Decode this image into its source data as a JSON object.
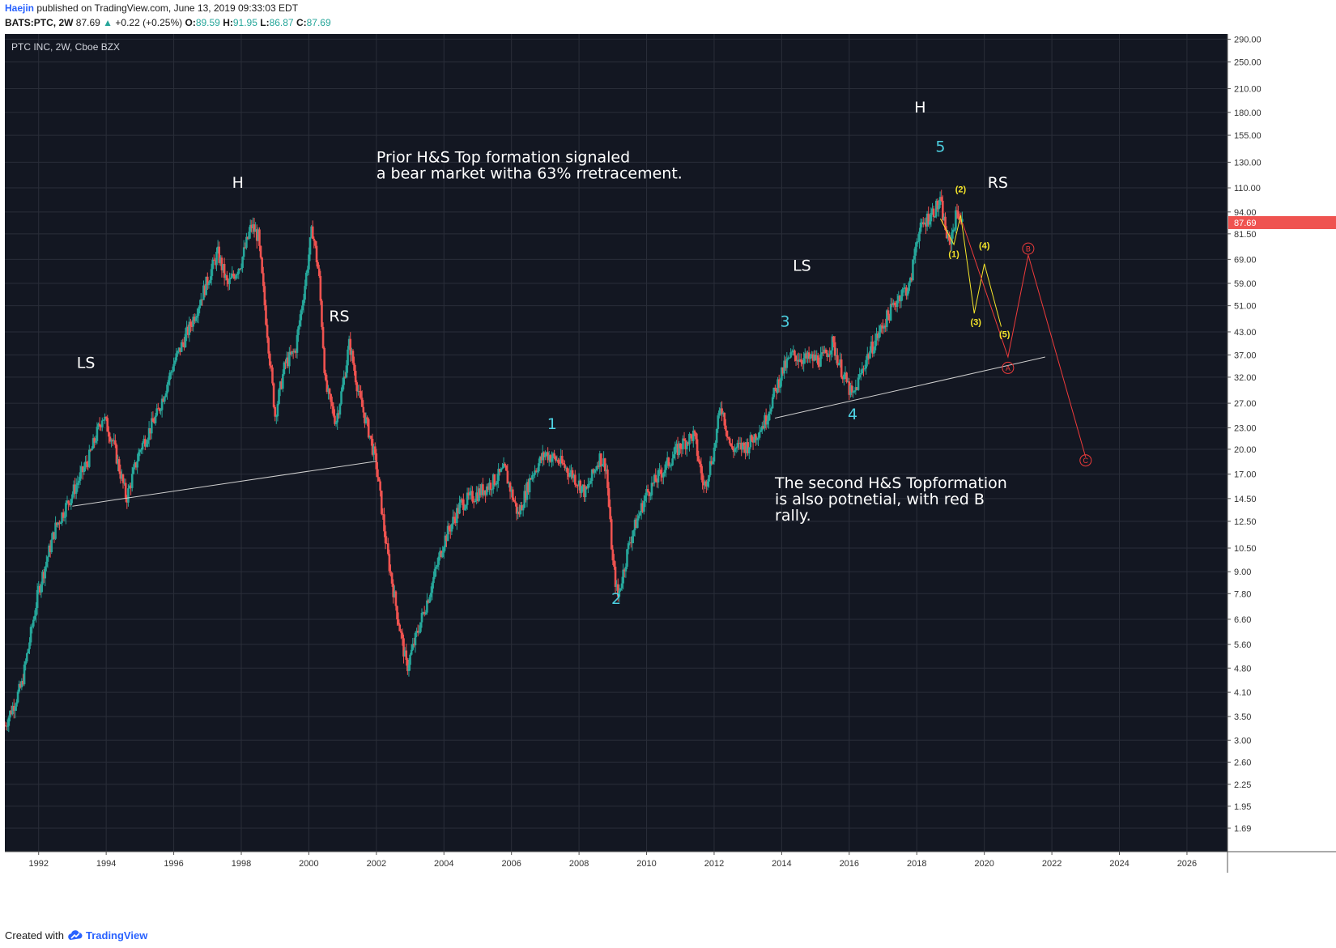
{
  "header": {
    "author": "Haejin",
    "published_text": "published on TradingView.com, June 13, 2019 09:33:03 EDT",
    "symbol": "BATS:PTC, 2W",
    "last": "87.69",
    "change": "+0.22 (+0.25%)",
    "open_label": "O:",
    "open": "89.59",
    "high_label": "H:",
    "high": "91.95",
    "low_label": "L:",
    "low": "86.87",
    "close_label": "C:",
    "close": "87.69"
  },
  "footer": {
    "created_with": "Created with",
    "brand": "TradingView"
  },
  "colors": {
    "background": "#131722",
    "grid": "#2a2e39",
    "up": "#26a69a",
    "down": "#ef5350",
    "cyan": "#4dd0e1",
    "yellow": "#f5e52a",
    "red": "#ef3b3b",
    "white": "#ffffff",
    "price_badge": "#ef5350"
  },
  "chart_data": {
    "type": "candlestick",
    "title": "PTC INC, 2W, Cboe BZX",
    "scale": "log",
    "xlim": [
      1991.0,
      2027.2
    ],
    "ylim": [
      1.45,
      300
    ],
    "x_ticks": [
      "1992",
      "1994",
      "1996",
      "1998",
      "2000",
      "2002",
      "2004",
      "2006",
      "2008",
      "2010",
      "2012",
      "2014",
      "2016",
      "2018",
      "2020",
      "2022",
      "2024",
      "2026"
    ],
    "y_ticks": [
      "290.00",
      "250.00",
      "210.00",
      "180.00",
      "155.00",
      "130.00",
      "110.00",
      "94.00",
      "81.50",
      "69.00",
      "59.00",
      "51.00",
      "43.00",
      "37.00",
      "32.00",
      "27.00",
      "23.00",
      "20.00",
      "17.00",
      "14.50",
      "12.50",
      "10.50",
      "9.00",
      "7.80",
      "6.60",
      "5.60",
      "4.80",
      "4.10",
      "3.50",
      "3.00",
      "2.60",
      "2.25",
      "1.95",
      "1.69"
    ],
    "last_price": "87.69",
    "price_path": [
      [
        1991.0,
        3.3
      ],
      [
        1991.5,
        4.3
      ],
      [
        1992.0,
        8.0
      ],
      [
        1992.5,
        12.0
      ],
      [
        1993.0,
        15.0
      ],
      [
        1993.5,
        19.0
      ],
      [
        1993.9,
        25.0
      ],
      [
        1994.2,
        21.0
      ],
      [
        1994.6,
        14.5
      ],
      [
        1995.0,
        20.0
      ],
      [
        1995.5,
        25.0
      ],
      [
        1996.0,
        35.0
      ],
      [
        1996.5,
        45.0
      ],
      [
        1997.0,
        60.0
      ],
      [
        1997.3,
        72.0
      ],
      [
        1997.6,
        58.0
      ],
      [
        1998.0,
        68.0
      ],
      [
        1998.3,
        86.0
      ],
      [
        1998.5,
        80.0
      ],
      [
        1998.8,
        40.0
      ],
      [
        1999.0,
        25.0
      ],
      [
        1999.3,
        35.0
      ],
      [
        1999.6,
        38.0
      ],
      [
        1999.9,
        60.0
      ],
      [
        2000.1,
        85.0
      ],
      [
        2000.3,
        62.0
      ],
      [
        2000.5,
        30.0
      ],
      [
        2000.8,
        24.0
      ],
      [
        2001.0,
        30.0
      ],
      [
        2001.2,
        40.0
      ],
      [
        2001.5,
        28.0
      ],
      [
        2001.8,
        22.0
      ],
      [
        2002.0,
        18.0
      ],
      [
        2002.3,
        10.5
      ],
      [
        2002.6,
        7.0
      ],
      [
        2002.9,
        4.8
      ],
      [
        2003.2,
        6.0
      ],
      [
        2003.6,
        8.0
      ],
      [
        2004.0,
        11.0
      ],
      [
        2004.5,
        14.0
      ],
      [
        2005.0,
        15.0
      ],
      [
        2005.4,
        16.0
      ],
      [
        2005.8,
        17.5
      ],
      [
        2006.2,
        13.0
      ],
      [
        2006.6,
        17.0
      ],
      [
        2007.0,
        19.5
      ],
      [
        2007.4,
        18.5
      ],
      [
        2007.8,
        17.0
      ],
      [
        2008.2,
        15.0
      ],
      [
        2008.6,
        19.0
      ],
      [
        2008.8,
        18.0
      ],
      [
        2009.0,
        9.5
      ],
      [
        2009.15,
        7.6
      ],
      [
        2009.5,
        11.0
      ],
      [
        2010.0,
        15.0
      ],
      [
        2010.5,
        17.5
      ],
      [
        2011.0,
        20.5
      ],
      [
        2011.4,
        22.0
      ],
      [
        2011.7,
        15.5
      ],
      [
        2012.0,
        20.0
      ],
      [
        2012.2,
        27.0
      ],
      [
        2012.5,
        20.0
      ],
      [
        2013.0,
        20.5
      ],
      [
        2013.5,
        24.0
      ],
      [
        2014.0,
        33.0
      ],
      [
        2014.3,
        37.0
      ],
      [
        2014.7,
        36.0
      ],
      [
        2015.2,
        36.0
      ],
      [
        2015.5,
        40.0
      ],
      [
        2015.8,
        33.0
      ],
      [
        2016.1,
        28.0
      ],
      [
        2016.5,
        36.0
      ],
      [
        2017.0,
        45.0
      ],
      [
        2017.5,
        55.0
      ],
      [
        2017.8,
        58.0
      ],
      [
        2018.0,
        80.0
      ],
      [
        2018.3,
        90.0
      ],
      [
        2018.7,
        100.0
      ],
      [
        2018.95,
        75.0
      ],
      [
        2019.2,
        95.0
      ],
      [
        2019.35,
        87.69
      ]
    ],
    "text_annotations": [
      {
        "text": "LS",
        "x": 1993.4,
        "y": 34.0,
        "color": "white"
      },
      {
        "text": "H",
        "x": 1997.9,
        "y": 110.0,
        "color": "white"
      },
      {
        "text": "RS",
        "x": 2000.9,
        "y": 46.0,
        "color": "white"
      },
      {
        "text": "LS",
        "x": 2014.6,
        "y": 64.0,
        "color": "white"
      },
      {
        "text": "H",
        "x": 2018.1,
        "y": 180.0,
        "color": "white"
      },
      {
        "text": "RS",
        "x": 2020.4,
        "y": 110.0,
        "color": "white"
      },
      {
        "text": "1",
        "x": 2007.2,
        "y": 22.8,
        "color": "cyan"
      },
      {
        "text": "2",
        "x": 2009.1,
        "y": 7.3,
        "color": "cyan"
      },
      {
        "text": "3",
        "x": 2014.1,
        "y": 44.5,
        "color": "cyan"
      },
      {
        "text": "4",
        "x": 2016.1,
        "y": 24.3,
        "color": "cyan"
      },
      {
        "text": "5",
        "x": 2018.7,
        "y": 139.0,
        "color": "cyan"
      }
    ],
    "notes": [
      {
        "lines": [
          "Prior H&S Top formation signaled",
          "a bear market witha 63% rretracement."
        ],
        "x": 2002.0,
        "y": 130.0
      },
      {
        "lines": [
          "The second H&S Topformation",
          "is also potnetial, with red B",
          "rally."
        ],
        "x": 2013.8,
        "y": 15.5
      }
    ],
    "neckline_1": [
      [
        1993.0,
        13.8
      ],
      [
        2002.0,
        18.5
      ]
    ],
    "neckline_2": [
      [
        2013.8,
        24.5
      ],
      [
        2021.8,
        36.5
      ]
    ],
    "yellow_wave": [
      [
        2018.7,
        90.0
      ],
      [
        2019.1,
        76.0
      ],
      [
        2019.3,
        92.0
      ],
      [
        2019.7,
        48.5
      ],
      [
        2020.0,
        67.0
      ],
      [
        2020.5,
        44.5
      ]
    ],
    "yellow_labels": [
      {
        "text": "(1)",
        "x": 2019.1,
        "y": 70.0
      },
      {
        "text": "(2)",
        "x": 2019.3,
        "y": 107.0
      },
      {
        "text": "(3)",
        "x": 2019.75,
        "y": 45.0
      },
      {
        "text": "(4)",
        "x": 2020.0,
        "y": 74.0
      },
      {
        "text": "(5)",
        "x": 2020.6,
        "y": 41.5
      }
    ],
    "red_wave": [
      [
        2019.35,
        87.69
      ],
      [
        2020.7,
        36.5
      ],
      [
        2021.3,
        71.0
      ],
      [
        2023.0,
        19.0
      ]
    ],
    "red_labels": [
      {
        "text": "A",
        "x": 2020.7,
        "y": 34.0
      },
      {
        "text": "B",
        "x": 2021.3,
        "y": 74.0
      },
      {
        "text": "C",
        "x": 2023.0,
        "y": 18.6
      }
    ]
  }
}
